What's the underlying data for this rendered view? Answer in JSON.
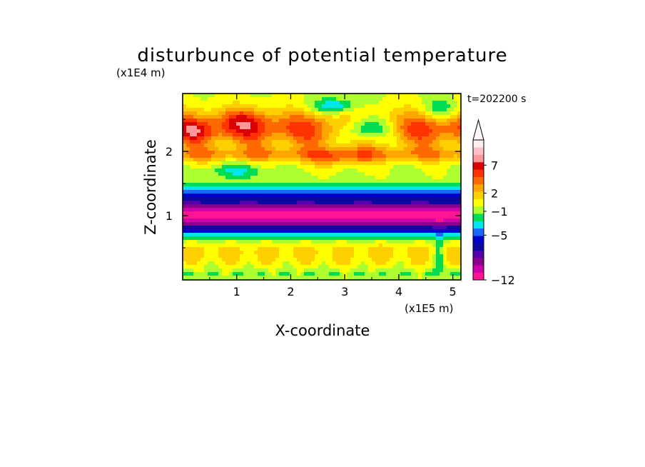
{
  "chart_data": {
    "type": "heatmap",
    "title": "disturbunce of potential temperature",
    "xlabel": "X-coordinate",
    "ylabel": "Z-coordinate",
    "x_unit": "(x1E5 m)",
    "y_unit": "(x1E4 m)",
    "time_label": "t=202200 s",
    "xlim": [
      0,
      5.15
    ],
    "ylim": [
      0,
      2.9
    ],
    "x_ticks": [
      1,
      2,
      3,
      4,
      5
    ],
    "y_ticks": [
      1,
      2
    ],
    "colorbar": {
      "tick_labels": [
        "7",
        "2",
        "−1",
        "−5",
        "−12"
      ],
      "extend": "max",
      "colors": [
        "#ff1493",
        "#cc00aa",
        "#8b008b",
        "#5500aa",
        "#0a0aa0",
        "#0000cd",
        "#1e64ff",
        "#00e5ee",
        "#00dd55",
        "#adff2f",
        "#ffff00",
        "#ffd000",
        "#ffa500",
        "#ff6a00",
        "#ff3300",
        "#dd0000",
        "#ff9999",
        "#ffc0cb",
        "#fff0f0"
      ]
    },
    "field_description": "banded z-dependent disturbance: warm band near z=2.3, strong cold band near z=1.0, weakly positive lower layer"
  }
}
